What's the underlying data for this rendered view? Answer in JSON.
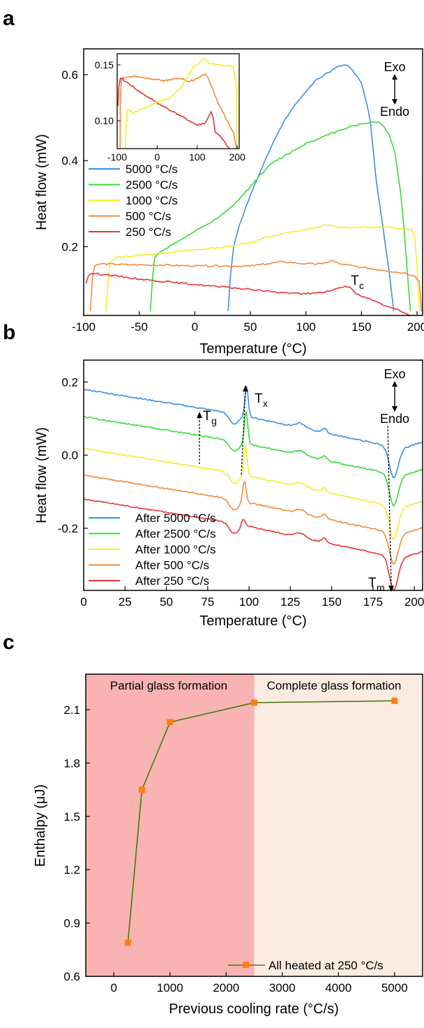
{
  "chart_data": [
    {
      "panel_label": "a",
      "type": "line",
      "xlabel": "Temperature (°C)",
      "ylabel": "Heat flow (mW)",
      "xlim": [
        -100,
        205
      ],
      "ylim": [
        0.04,
        0.66
      ],
      "xticks": [
        -100,
        -50,
        0,
        50,
        100,
        150,
        200
      ],
      "yticks": [
        0.2,
        0.4,
        0.6
      ],
      "legend_position": "middle-left",
      "annotations": {
        "exo": "Exo",
        "endo": "Endo",
        "tc_main": "T",
        "tc_sub": "c"
      },
      "series": [
        {
          "name": "5000 °C/s",
          "color": "#3a8ee6",
          "points": [
            [
              30,
              0.05
            ],
            [
              32,
              0.13
            ],
            [
              35,
              0.2
            ],
            [
              40,
              0.25
            ],
            [
              50,
              0.32
            ],
            [
              60,
              0.38
            ],
            [
              70,
              0.44
            ],
            [
              80,
              0.49
            ],
            [
              90,
              0.53
            ],
            [
              100,
              0.56
            ],
            [
              110,
              0.59
            ],
            [
              120,
              0.605
            ],
            [
              130,
              0.62
            ],
            [
              137,
              0.622
            ],
            [
              142,
              0.61
            ],
            [
              150,
              0.58
            ],
            [
              153,
              0.55
            ],
            [
              155,
              0.53
            ],
            [
              158,
              0.49
            ],
            [
              163,
              0.36
            ],
            [
              168,
              0.27
            ],
            [
              175,
              0.14
            ],
            [
              179,
              0.05
            ]
          ]
        },
        {
          "name": "2500 °C/s",
          "color": "#33dd33",
          "points": [
            [
              -40,
              0.05
            ],
            [
              -38,
              0.13
            ],
            [
              -36,
              0.175
            ],
            [
              -30,
              0.19
            ],
            [
              -20,
              0.205
            ],
            [
              -10,
              0.22
            ],
            [
              0,
              0.235
            ],
            [
              10,
              0.25
            ],
            [
              20,
              0.265
            ],
            [
              30,
              0.285
            ],
            [
              40,
              0.31
            ],
            [
              50,
              0.34
            ],
            [
              60,
              0.37
            ],
            [
              70,
              0.395
            ],
            [
              80,
              0.41
            ],
            [
              90,
              0.425
            ],
            [
              100,
              0.44
            ],
            [
              110,
              0.45
            ],
            [
              120,
              0.46
            ],
            [
              130,
              0.47
            ],
            [
              140,
              0.48
            ],
            [
              150,
              0.485
            ],
            [
              160,
              0.49
            ],
            [
              165,
              0.49
            ],
            [
              170,
              0.48
            ],
            [
              175,
              0.46
            ],
            [
              180,
              0.42
            ],
            [
              185,
              0.33
            ],
            [
              188,
              0.25
            ],
            [
              191,
              0.15
            ],
            [
              194,
              0.05
            ]
          ]
        },
        {
          "name": "1000 °C/s",
          "color": "#f2ee2a",
          "points": [
            [
              -80,
              0.05
            ],
            [
              -78,
              0.12
            ],
            [
              -76,
              0.165
            ],
            [
              -70,
              0.175
            ],
            [
              -50,
              0.18
            ],
            [
              -30,
              0.185
            ],
            [
              -10,
              0.19
            ],
            [
              10,
              0.195
            ],
            [
              30,
              0.2
            ],
            [
              50,
              0.21
            ],
            [
              70,
              0.225
            ],
            [
              90,
              0.235
            ],
            [
              110,
              0.245
            ],
            [
              118,
              0.25
            ],
            [
              130,
              0.245
            ],
            [
              150,
              0.245
            ],
            [
              170,
              0.245
            ],
            [
              185,
              0.243
            ],
            [
              195,
              0.24
            ],
            [
              198,
              0.22
            ],
            [
              200,
              0.15
            ],
            [
              202,
              0.05
            ]
          ]
        },
        {
          "name": "500 °C/s",
          "color": "#f08a3a",
          "points": [
            [
              -94,
              0.05
            ],
            [
              -92,
              0.13
            ],
            [
              -90,
              0.155
            ],
            [
              -85,
              0.16
            ],
            [
              -60,
              0.158
            ],
            [
              -30,
              0.157
            ],
            [
              0,
              0.155
            ],
            [
              30,
              0.155
            ],
            [
              50,
              0.155
            ],
            [
              65,
              0.16
            ],
            [
              80,
              0.165
            ],
            [
              100,
              0.16
            ],
            [
              115,
              0.16
            ],
            [
              123,
              0.168
            ],
            [
              130,
              0.16
            ],
            [
              150,
              0.152
            ],
            [
              170,
              0.145
            ],
            [
              190,
              0.138
            ],
            [
              198,
              0.132
            ],
            [
              202,
              0.12
            ],
            [
              204,
              0.05
            ]
          ]
        },
        {
          "name": "250 °C/s",
          "color": "#e83434",
          "points": [
            [
              -98,
              0.115
            ],
            [
              -96,
              0.13
            ],
            [
              -93,
              0.138
            ],
            [
              -80,
              0.135
            ],
            [
              -60,
              0.128
            ],
            [
              -40,
              0.122
            ],
            [
              -20,
              0.117
            ],
            [
              0,
              0.112
            ],
            [
              20,
              0.107
            ],
            [
              40,
              0.103
            ],
            [
              60,
              0.098
            ],
            [
              80,
              0.093
            ],
            [
              100,
              0.09
            ],
            [
              115,
              0.093
            ],
            [
              125,
              0.1
            ],
            [
              135,
              0.108
            ],
            [
              140,
              0.105
            ],
            [
              145,
              0.09
            ],
            [
              155,
              0.08
            ],
            [
              165,
              0.07
            ],
            [
              175,
              0.06
            ],
            [
              185,
              0.05
            ],
            [
              195,
              0.04
            ],
            [
              203,
              0.03
            ]
          ]
        }
      ],
      "inset": {
        "xlim": [
          -100,
          205
        ],
        "ylim": [
          0.075,
          0.16
        ],
        "xticks": [
          -100,
          0,
          100,
          200
        ],
        "yticks": [
          0.1,
          0.15
        ],
        "ytick_labels": [
          "0.10",
          "0.15"
        ]
      }
    },
    {
      "panel_label": "b",
      "type": "line",
      "xlabel": "Temperature (°C)",
      "ylabel": "Heat flow (mW)",
      "xlim": [
        0,
        205
      ],
      "ylim": [
        -0.37,
        0.26
      ],
      "xticks": [
        0,
        25,
        50,
        75,
        100,
        125,
        150,
        175,
        200
      ],
      "yticks": [
        -0.2,
        0.0,
        0.2
      ],
      "ytick_labels": [
        "-0.2",
        "0.0",
        "0.2"
      ],
      "legend_position": "bottom-left",
      "annotations": {
        "exo": "Exo",
        "endo": "Endo",
        "tg_main": "T",
        "tg_sub": "g",
        "tx_main": "T",
        "tx_sub": "x",
        "tm_main": "T",
        "tm_sub": "m"
      },
      "series": [
        {
          "name": "After 5000 °C/s",
          "color": "#3a8ee6",
          "offset": 0.18,
          "peak_x": 98.5,
          "peak_h": 0.085,
          "dip": 0.085
        },
        {
          "name": "After 2500 °C/s",
          "color": "#33dd33",
          "offset": 0.105,
          "peak_x": 98.2,
          "peak_h": 0.09,
          "dip": 0.085
        },
        {
          "name": "After 1000 °C/s",
          "color": "#f2ee2a",
          "offset": 0.018,
          "peak_x": 97.8,
          "peak_h": 0.085,
          "dip": 0.09
        },
        {
          "name": "After 500 °C/s",
          "color": "#f08a3a",
          "offset": -0.055,
          "peak_x": 97.2,
          "peak_h": 0.06,
          "dip": 0.085
        },
        {
          "name": "After 250 °C/s",
          "color": "#e83434",
          "offset": -0.12,
          "peak_x": 96.5,
          "peak_h": 0.022,
          "dip": 0.09
        }
      ]
    },
    {
      "panel_label": "c",
      "type": "line",
      "xlabel": "Previous cooling rate (°C/s)",
      "ylabel": "Enthalpy (μJ)",
      "xlim": [
        -500,
        5500
      ],
      "ylim": [
        0.6,
        2.3
      ],
      "xticks": [
        0,
        1000,
        2000,
        3000,
        4000,
        5000
      ],
      "yticks": [
        0.6,
        0.9,
        1.2,
        1.5,
        1.8,
        2.1
      ],
      "ytick_labels": [
        "0.6",
        "0.9",
        "1.2",
        "1.5",
        "1.8",
        "2.1"
      ],
      "x": [
        250,
        500,
        1000,
        2500,
        5000
      ],
      "values": [
        0.79,
        1.65,
        2.03,
        2.14,
        2.15
      ],
      "line_color": "#4a7d1a",
      "marker_color": "#ff7f0e",
      "legend_label": "All heated at 250 °C/s",
      "regions": [
        {
          "label": "Partial glass formation",
          "from": -500,
          "to": 2500,
          "color": "#f9b3b3"
        },
        {
          "label": "Complete glass formation",
          "from": 2500,
          "to": 5500,
          "color": "#fbebe1"
        }
      ]
    }
  ]
}
